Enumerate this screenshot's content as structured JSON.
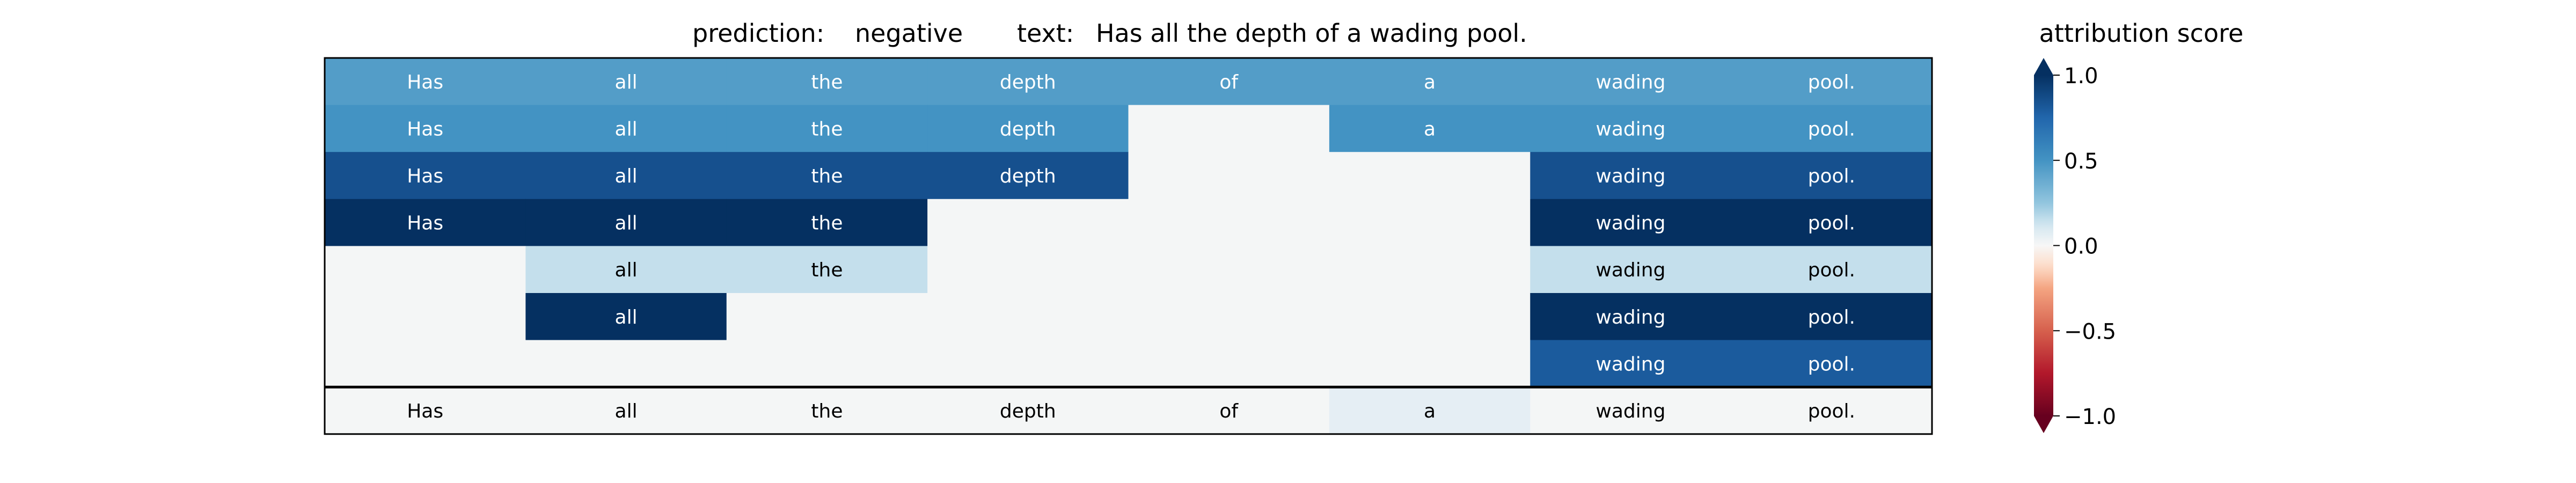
{
  "chart_data": {
    "type": "heatmap",
    "title_prediction_label": "prediction:",
    "title_prediction_value": "negative",
    "title_text_label": "text:",
    "title_text_value": "Has all the depth of a wading pool.",
    "colorbar_title": "attribution score",
    "colorbar_range": [
      -1.0,
      1.0
    ],
    "colorbar_ticks": [
      1.0,
      0.5,
      0.0,
      -0.5,
      -1.0
    ],
    "colorbar_tick_labels": [
      "1.0",
      "0.5",
      "0.0",
      "−0.5",
      "−1.0"
    ],
    "colormap": "RdBu",
    "tokens": [
      "Has",
      "all",
      "the",
      "depth",
      "of",
      "a",
      "wading",
      "pool."
    ],
    "rows": [
      {
        "shown": [
          true,
          true,
          true,
          true,
          true,
          true,
          true,
          true
        ],
        "score": 0.45
      },
      {
        "shown": [
          true,
          true,
          true,
          true,
          false,
          true,
          true,
          true
        ],
        "score": 0.5
      },
      {
        "shown": [
          true,
          true,
          true,
          true,
          false,
          false,
          true,
          true
        ],
        "score": 0.85
      },
      {
        "shown": [
          true,
          true,
          true,
          false,
          false,
          false,
          true,
          true
        ],
        "score": 1.0
      },
      {
        "shown": [
          false,
          true,
          true,
          false,
          false,
          false,
          true,
          true
        ],
        "score": 0.15
      },
      {
        "shown": [
          false,
          true,
          false,
          false,
          false,
          false,
          true,
          true
        ],
        "score": 1.0
      },
      {
        "shown": [
          false,
          false,
          false,
          false,
          false,
          false,
          true,
          true
        ],
        "score": 0.8
      }
    ],
    "bottom_row": {
      "shown": [
        true,
        true,
        true,
        true,
        true,
        true,
        true,
        true
      ],
      "scores": [
        0.0,
        0.0,
        0.0,
        0.0,
        0.0,
        0.06,
        0.0,
        0.0
      ]
    }
  }
}
